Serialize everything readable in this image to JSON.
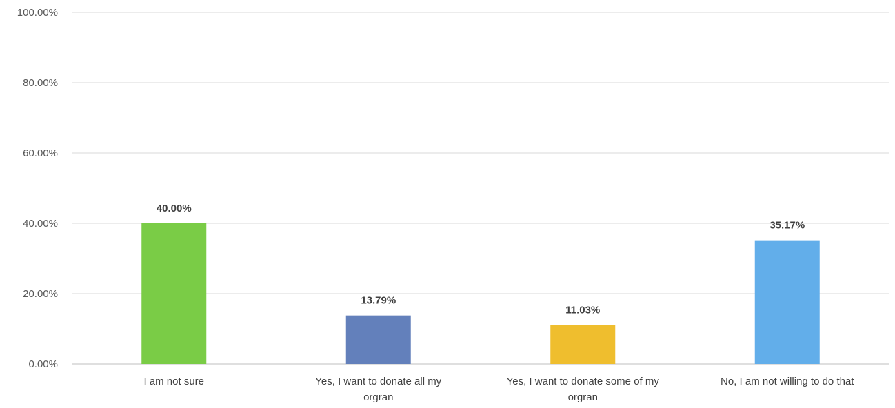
{
  "chart_data": {
    "type": "bar",
    "categories": [
      [
        "I am not sure"
      ],
      [
        "Yes, I want to donate all my",
        "orgran"
      ],
      [
        "Yes, I want to donate some of my",
        "orgran"
      ],
      [
        "No, I am not willing to do that"
      ]
    ],
    "values": [
      40.0,
      13.79,
      11.03,
      35.17
    ],
    "value_labels": [
      "40.00%",
      "13.79%",
      "11.03%",
      "35.17%"
    ],
    "bar_colors": [
      "#7ACC46",
      "#6380BB",
      "#EFBE2E",
      "#62AEEA"
    ],
    "ylim": [
      0,
      100
    ],
    "yticks": [
      0,
      20,
      40,
      60,
      80,
      100
    ],
    "ytick_labels": [
      "0.00%",
      "20.00%",
      "40.00%",
      "60.00%",
      "80.00%",
      "100.00%"
    ],
    "grid": true,
    "legend": "none",
    "title": "",
    "xlabel": "",
    "ylabel": ""
  }
}
